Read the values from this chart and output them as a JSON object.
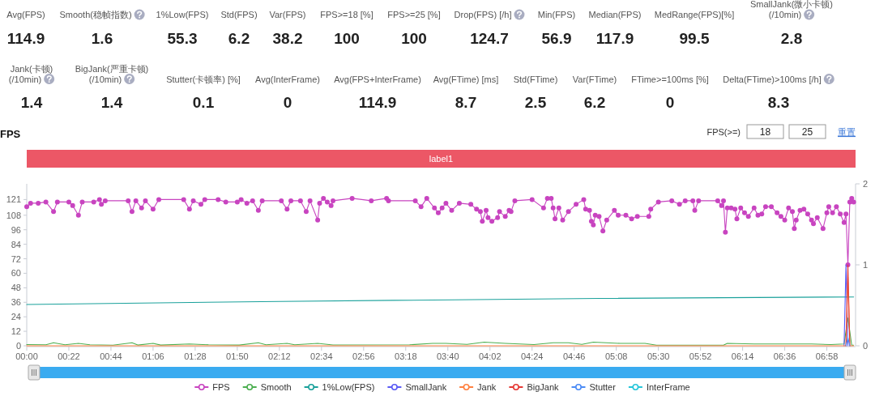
{
  "chart_data": [
    {
      "type": "other",
      "annotations": [
        "Avg(FPS)",
        "114.9",
        "Smooth(稳帧指数)",
        "1.6",
        "1%Low(FPS)",
        "55.3",
        "Std(FPS)",
        "6.2",
        "Var(FPS)",
        "38.2",
        "FPS>=18 [%]",
        "100",
        "FPS>=25 [%]",
        "100",
        "Drop(FPS) [/h]",
        "124.7",
        "Min(FPS)",
        "56.9",
        "Median(FPS)",
        "117.9",
        "MedRange(FPS)[%]",
        "99.5",
        "SmallJank(微小卡顿)\n(/10min)",
        "2.8",
        "Jank(卡顿)\n(/10min)",
        "1.4",
        "BigJank(严重卡顿)\n(/10min)",
        "1.4",
        "Stutter(卡顿率) [%]",
        "0.1",
        "Avg(InterFrame)",
        "0",
        "Avg(FPS+InterFrame)",
        "114.9",
        "Avg(FTime) [ms]",
        "8.7",
        "Std(FTime)",
        "2.5",
        "Var(FTime)",
        "6.2",
        "FTime>=100ms [%]",
        "0",
        "Delta(FTime)>100ms [/h]",
        "8.3"
      ]
    },
    {
      "type": "line",
      "title": "FPS",
      "annotations": [
        "FPS(>=)",
        "18",
        "25",
        "重置",
        "label1"
      ],
      "xlim": [
        0,
        433
      ],
      "xticks": [
        {
          "value": 0,
          "label": "00:00"
        },
        {
          "value": 22,
          "label": "00:22"
        },
        {
          "value": 44,
          "label": "00:44"
        },
        {
          "value": 66,
          "label": "01:06"
        },
        {
          "value": 88,
          "label": "01:28"
        },
        {
          "value": 110,
          "label": "01:50"
        },
        {
          "value": 132,
          "label": "02:12"
        },
        {
          "value": 154,
          "label": "02:34"
        },
        {
          "value": 176,
          "label": "02:56"
        },
        {
          "value": 198,
          "label": "03:18"
        },
        {
          "value": 220,
          "label": "03:40"
        },
        {
          "value": 242,
          "label": "04:02"
        },
        {
          "value": 264,
          "label": "04:24"
        },
        {
          "value": 286,
          "label": "04:46"
        },
        {
          "value": 308,
          "label": "05:08"
        },
        {
          "value": 330,
          "label": "05:30"
        },
        {
          "value": 352,
          "label": "05:52"
        },
        {
          "value": 374,
          "label": "06:14"
        },
        {
          "value": 396,
          "label": "06:36"
        },
        {
          "value": 418,
          "label": "06:58"
        }
      ],
      "ylim": [
        0,
        134
      ],
      "yticks": [
        0,
        12,
        24,
        36,
        48,
        60,
        72,
        84,
        96,
        108,
        121
      ],
      "y2lim": [
        0,
        2
      ],
      "y2ticks": [
        0,
        1,
        2
      ],
      "legend": "bottom",
      "series": [
        {
          "name": "FPS",
          "color": "#c844c0",
          "marker": "circle",
          "x": [
            0,
            2,
            6,
            10,
            14,
            16,
            22,
            24,
            27,
            29,
            35,
            38,
            39,
            41,
            53,
            55,
            57,
            60,
            62,
            66,
            69,
            82,
            85,
            87,
            91,
            93,
            100,
            104,
            110,
            112,
            115,
            118,
            121,
            123,
            133,
            136,
            138,
            143,
            146,
            148,
            152,
            153,
            155,
            157,
            159,
            160,
            170,
            180,
            188,
            189,
            203,
            206,
            209,
            213,
            215,
            217,
            219,
            222,
            226,
            232,
            235,
            237,
            238,
            240,
            241,
            243,
            246,
            247,
            250,
            252,
            253,
            255,
            264,
            270,
            272,
            274,
            275,
            276,
            278,
            280,
            283,
            287,
            291,
            292,
            294,
            295,
            296,
            297,
            299,
            301,
            303,
            307,
            309,
            313,
            316,
            319,
            325,
            326,
            330,
            337,
            341,
            344,
            348,
            349,
            351,
            361,
            363,
            364,
            365,
            366,
            368,
            370,
            371,
            373,
            375,
            377,
            380,
            382,
            384,
            386,
            389,
            392,
            394,
            396,
            398,
            400,
            401,
            402,
            404,
            406,
            408,
            410,
            411,
            413,
            416,
            418,
            419,
            421,
            423,
            425,
            427,
            428,
            429,
            430,
            431,
            432
          ],
          "values": [
            115,
            118,
            118,
            119,
            111,
            119,
            119,
            116,
            108,
            119,
            119,
            121,
            117,
            120,
            120,
            111,
            120,
            114,
            120,
            113,
            121,
            121,
            113,
            120,
            117,
            121,
            121,
            119,
            119,
            121,
            118,
            120,
            112,
            120,
            120,
            113,
            120,
            120,
            111,
            120,
            104,
            118,
            122,
            119,
            116,
            120,
            122,
            120,
            122,
            120,
            120,
            115,
            122,
            114,
            110,
            114,
            118,
            112,
            118,
            117,
            113,
            111,
            103,
            112,
            106,
            103,
            106,
            111,
            107,
            112,
            111,
            120,
            121,
            114,
            122,
            122,
            114,
            105,
            114,
            104,
            111,
            117,
            121,
            113,
            112,
            103,
            100,
            108,
            107,
            95,
            104,
            112,
            108,
            108,
            105,
            107,
            107,
            113,
            119,
            120,
            117,
            120,
            120,
            112,
            120,
            120,
            116,
            120,
            94,
            114,
            114,
            113,
            105,
            114,
            110,
            107,
            114,
            108,
            109,
            115,
            115,
            110,
            107,
            104,
            114,
            111,
            97,
            104,
            112,
            113,
            109,
            104,
            101,
            106,
            97,
            110,
            115,
            110,
            115,
            109,
            102,
            109,
            67,
            119,
            122,
            119
          ]
        },
        {
          "name": "Smooth",
          "color": "#4caf50",
          "marker": "none",
          "x": [
            0,
            10,
            14,
            20,
            27,
            33,
            45,
            55,
            58,
            66,
            70,
            85,
            95,
            111,
            121,
            125,
            136,
            140,
            152,
            160,
            200,
            212,
            219,
            230,
            239,
            250,
            265,
            275,
            283,
            290,
            296,
            310,
            323,
            329,
            364,
            366,
            380,
            410,
            420,
            427,
            429,
            431,
            432
          ],
          "values": [
            1,
            0.8,
            2.5,
            0.8,
            2,
            0.8,
            0.5,
            2.5,
            0.6,
            2,
            0.6,
            1.5,
            0.8,
            0.6,
            2.5,
            0.8,
            2,
            0.8,
            2,
            0.7,
            0.8,
            2,
            2,
            1.2,
            3,
            2,
            1,
            2.5,
            2.5,
            1.2,
            3,
            2,
            2,
            0.5,
            0.5,
            2,
            1.5,
            1.5,
            1,
            1.5,
            23,
            0.5,
            0.5
          ]
        },
        {
          "name": "1%Low(FPS)",
          "color": "#1aa19b",
          "marker": "none",
          "x": [
            0,
            132,
            299,
            432
          ],
          "values": [
            34.2,
            36.7,
            39.2,
            40.4
          ]
        },
        {
          "name": "SmallJank",
          "color": "#5a5af5",
          "marker": "none",
          "axis": "y2",
          "x": [
            427,
            428,
            429
          ],
          "values": [
            0,
            1,
            0
          ]
        },
        {
          "name": "Jank",
          "color": "#ff8040",
          "marker": "none",
          "axis": "y2",
          "x": [
            0,
            428,
            429,
            430,
            432
          ],
          "values": [
            0,
            0,
            0.85,
            0,
            0
          ]
        },
        {
          "name": "BigJank",
          "color": "#e53935",
          "marker": "none",
          "axis": "y2",
          "x": [
            428,
            429,
            430
          ],
          "values": [
            0,
            1,
            0
          ]
        },
        {
          "name": "Stutter",
          "color": "#4b8bf5",
          "marker": "none",
          "axis": "y2",
          "x": [
            428,
            429,
            430
          ],
          "values": [
            0,
            0.1,
            0
          ]
        },
        {
          "name": "InterFrame",
          "color": "#26c6da"
        }
      ]
    }
  ]
}
